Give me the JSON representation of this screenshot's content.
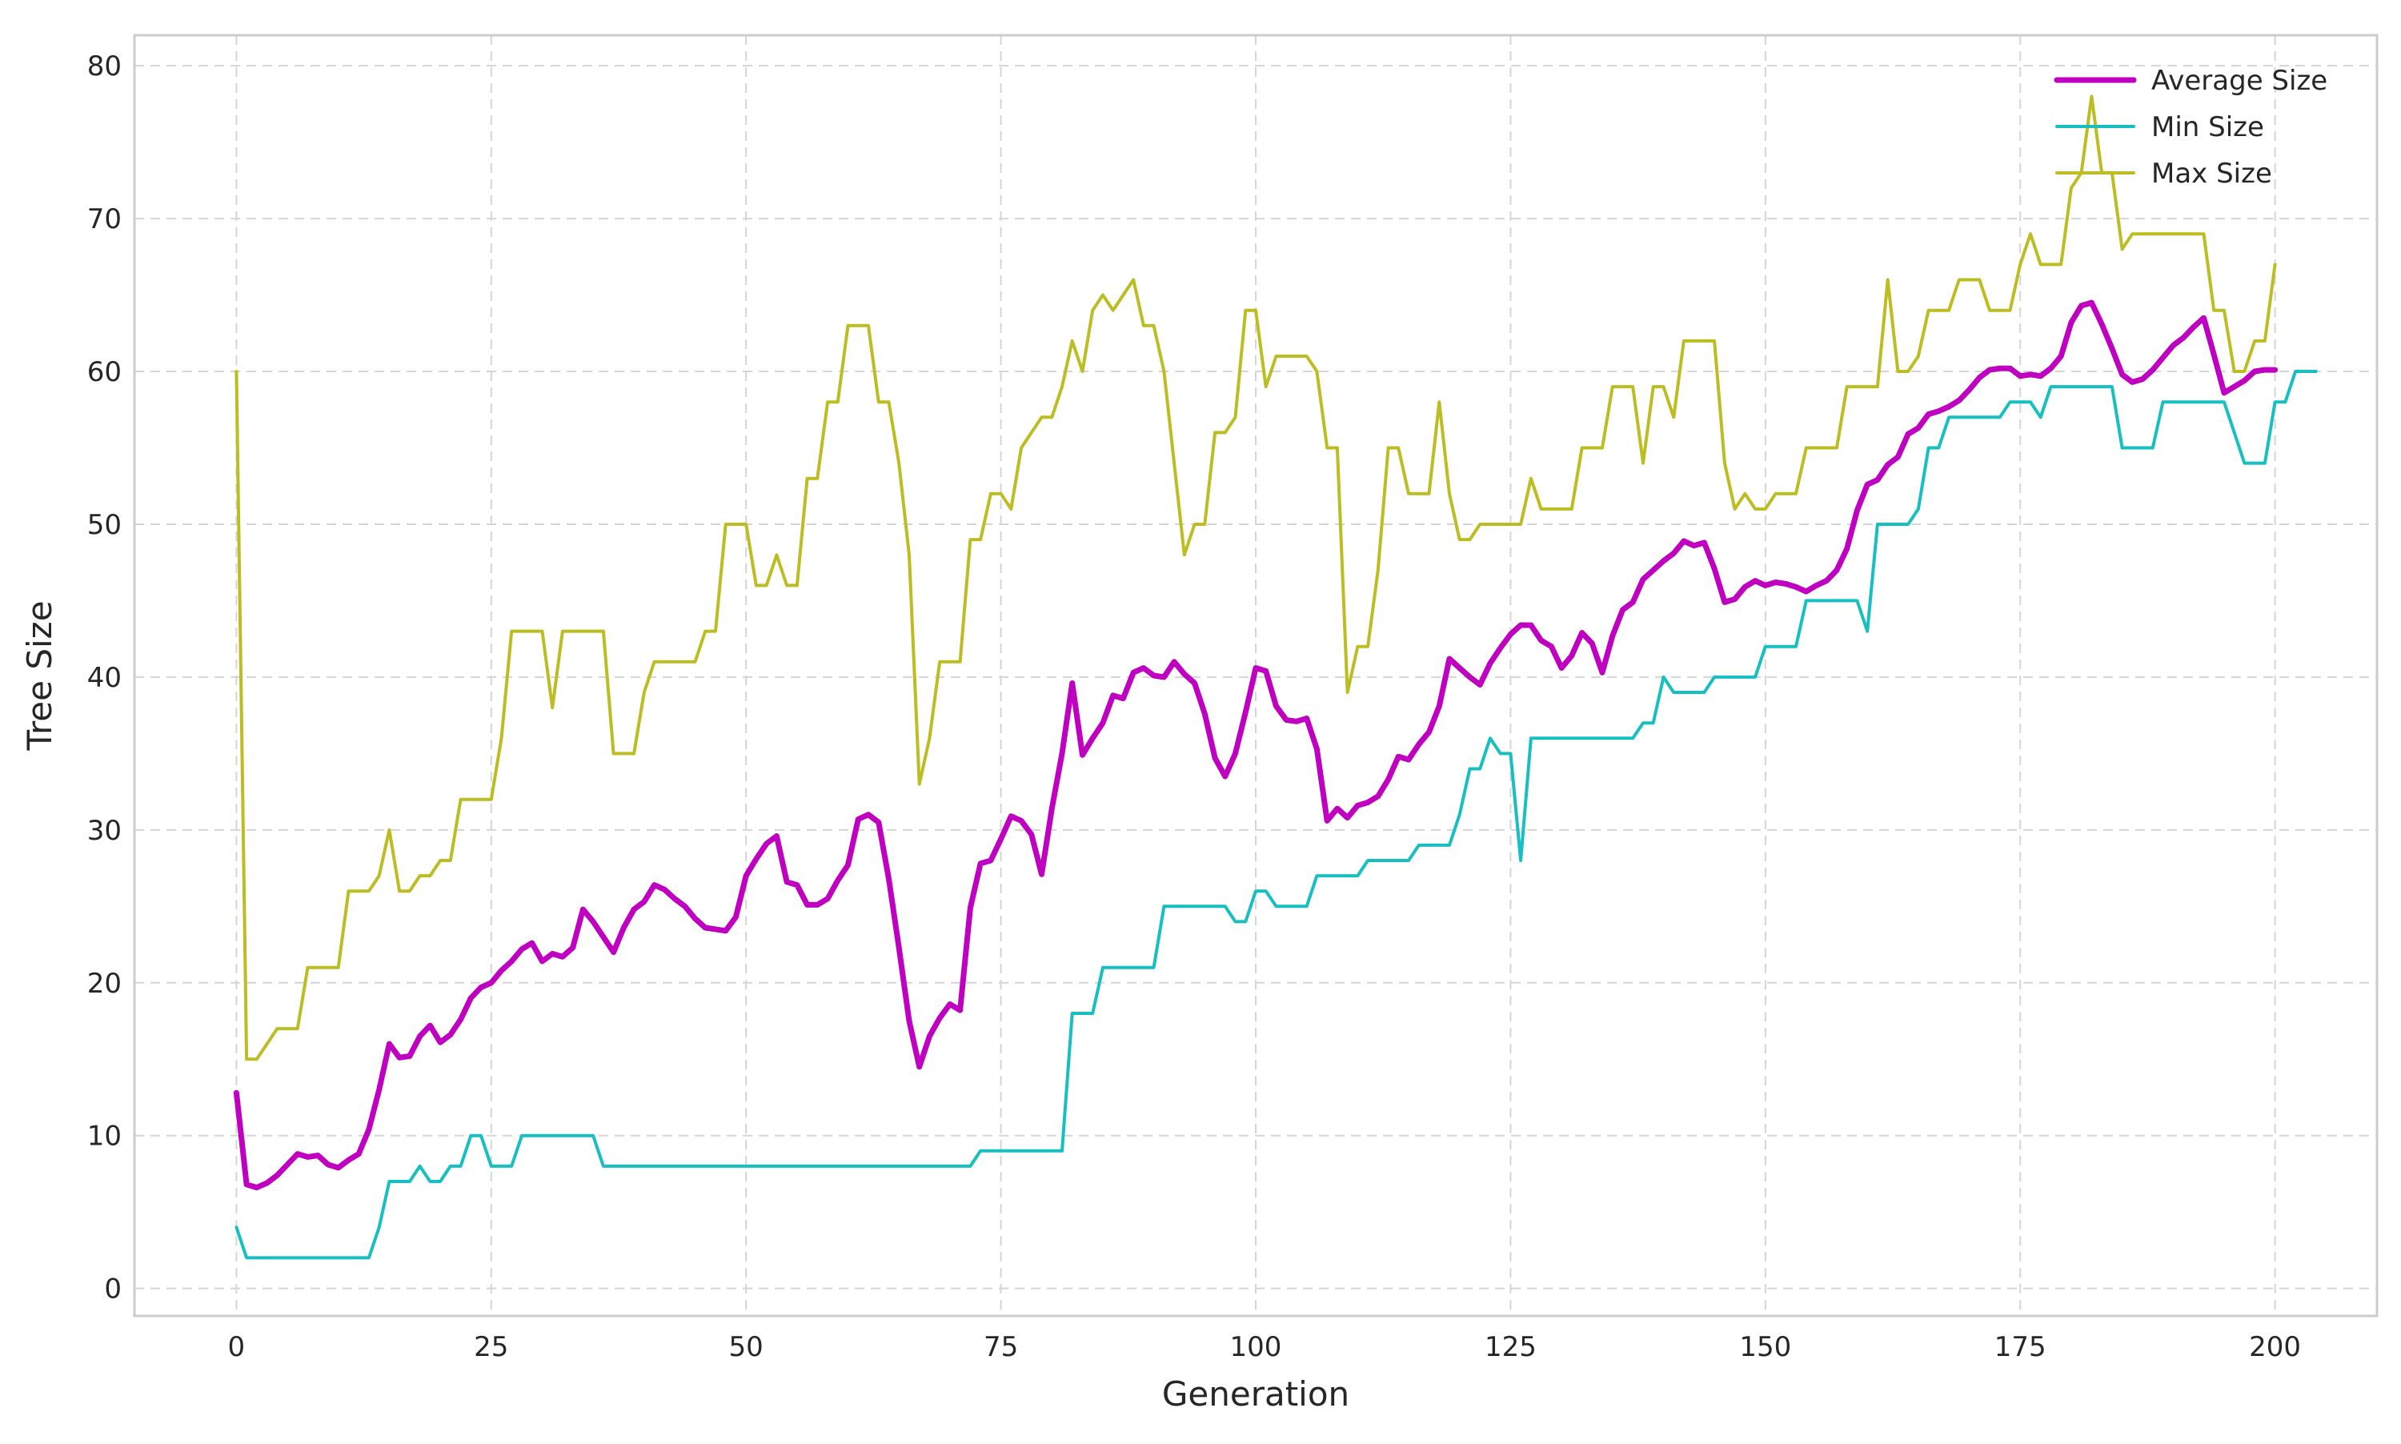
{
  "chart_data": {
    "type": "line",
    "title": "",
    "xlabel": "Generation",
    "ylabel": "Tree Size",
    "xlim": [
      -10,
      210
    ],
    "ylim": [
      -1.8,
      82
    ],
    "xticks": [
      0,
      25,
      50,
      75,
      100,
      125,
      150,
      175,
      200
    ],
    "yticks": [
      0,
      10,
      20,
      30,
      40,
      50,
      60,
      70,
      80
    ],
    "grid": true,
    "legend_position": "top-right",
    "series": [
      {
        "name": "Average Size",
        "color": "#c000c0",
        "width": 7,
        "values": [
          12.8,
          6.8,
          6.6,
          6.9,
          7.4,
          8.1,
          8.8,
          8.6,
          8.7,
          8.1,
          7.9,
          8.4,
          8.8,
          10.4,
          13.0,
          16.0,
          15.1,
          15.2,
          16.5,
          17.2,
          16.1,
          16.6,
          17.6,
          19.0,
          19.7,
          20.0,
          20.8,
          21.4,
          22.2,
          22.6,
          21.4,
          21.9,
          21.7,
          22.3,
          24.8,
          24.0,
          23.0,
          22.0,
          23.6,
          24.8,
          25.3,
          26.4,
          26.1,
          25.5,
          25.0,
          24.2,
          23.6,
          23.5,
          23.4,
          24.3,
          27.0,
          28.1,
          29.1,
          29.6,
          26.6,
          26.4,
          25.1,
          25.1,
          25.5,
          26.7,
          27.7,
          30.7,
          31.0,
          30.5,
          26.8,
          22.3,
          17.5,
          14.5,
          16.5,
          17.7,
          18.6,
          18.2,
          24.9,
          27.8,
          28.0,
          29.4,
          30.9,
          30.6,
          29.7,
          27.1,
          31.4,
          35.0,
          39.6,
          34.9,
          36.0,
          37.0,
          38.8,
          38.6,
          40.3,
          40.6,
          40.1,
          40.0,
          41.0,
          40.2,
          39.6,
          37.6,
          34.7,
          33.5,
          35.0,
          37.7,
          40.6,
          40.4,
          38.1,
          37.2,
          37.1,
          37.3,
          35.3,
          30.6,
          31.4,
          30.8,
          31.6,
          31.8,
          32.2,
          33.3,
          34.8,
          34.6,
          35.6,
          36.4,
          38.1,
          41.2,
          40.6,
          40.0,
          39.5,
          40.9,
          41.9,
          42.8,
          43.4,
          43.4,
          42.4,
          42.0,
          40.6,
          41.4,
          42.9,
          42.2,
          40.3,
          42.7,
          44.4,
          44.9,
          46.4,
          47.0,
          47.6,
          48.1,
          48.9,
          48.6,
          48.8,
          47.1,
          44.9,
          45.1,
          45.9,
          46.3,
          46.0,
          46.2,
          46.1,
          45.9,
          45.6,
          46.0,
          46.3,
          47.0,
          48.4,
          50.9,
          52.6,
          52.9,
          53.9,
          54.4,
          55.9,
          56.3,
          57.2,
          57.4,
          57.7,
          58.1,
          58.8,
          59.6,
          60.1,
          60.2,
          60.2,
          59.7,
          59.8,
          59.7,
          60.2,
          61.0,
          63.2,
          64.3,
          64.5,
          63.1,
          61.5,
          59.8,
          59.3,
          59.5,
          60.1,
          60.9,
          61.7,
          62.2,
          62.9,
          63.5,
          61.1,
          58.6,
          59.0,
          59.4,
          60.0,
          60.1,
          60.1
        ]
      },
      {
        "name": "Min Size",
        "color": "#17bfc1",
        "width": 4,
        "values": [
          4,
          2,
          2,
          2,
          2,
          2,
          2,
          2,
          2,
          2,
          2,
          2,
          2,
          2,
          4,
          7,
          7,
          7,
          8,
          7,
          7,
          8,
          8,
          10,
          10,
          8,
          8,
          8,
          10,
          10,
          10,
          10,
          10,
          10,
          10,
          10,
          8,
          8,
          8,
          8,
          8,
          8,
          8,
          8,
          8,
          8,
          8,
          8,
          8,
          8,
          8,
          8,
          8,
          8,
          8,
          8,
          8,
          8,
          8,
          8,
          8,
          8,
          8,
          8,
          8,
          8,
          8,
          8,
          8,
          8,
          8,
          8,
          8,
          9,
          9,
          9,
          9,
          9,
          9,
          9,
          9,
          9,
          18,
          18,
          18,
          21,
          21,
          21,
          21,
          21,
          21,
          25,
          25,
          25,
          25,
          25,
          25,
          25,
          24,
          24,
          26,
          26,
          25,
          25,
          25,
          25,
          27,
          27,
          27,
          27,
          27,
          28,
          28,
          28,
          28,
          28,
          29,
          29,
          29,
          29,
          31,
          34,
          34,
          36,
          35,
          35,
          28,
          36,
          36,
          36,
          36,
          36,
          36,
          36,
          36,
          36,
          36,
          36,
          37,
          37,
          40,
          39,
          39,
          39,
          39,
          40,
          40,
          40,
          40,
          40,
          42,
          42,
          42,
          42,
          45,
          45,
          45,
          45,
          45,
          45,
          43,
          50,
          50,
          50,
          50,
          51,
          55,
          55,
          57,
          57,
          57,
          57,
          57,
          57,
          58,
          58,
          58,
          57,
          59,
          59,
          59,
          59,
          59,
          59,
          59,
          55,
          55,
          55,
          55,
          58,
          58,
          58,
          58,
          58,
          58,
          58,
          56,
          54,
          54,
          54,
          58,
          58,
          60,
          60,
          60
        ]
      },
      {
        "name": "Max Size",
        "color": "#bcbd22",
        "width": 4,
        "values": [
          60,
          15,
          15,
          16,
          17,
          17,
          17,
          21,
          21,
          21,
          21,
          26,
          26,
          26,
          27,
          30,
          26,
          26,
          27,
          27,
          28,
          28,
          32,
          32,
          32,
          32,
          36,
          43,
          43,
          43,
          43,
          38,
          43,
          43,
          43,
          43,
          43,
          35,
          35,
          35,
          39,
          41,
          41,
          41,
          41,
          41,
          43,
          43,
          50,
          50,
          50,
          46,
          46,
          48,
          46,
          46,
          53,
          53,
          58,
          58,
          63,
          63,
          63,
          58,
          58,
          54,
          48,
          33,
          36,
          41,
          41,
          41,
          49,
          49,
          52,
          52,
          51,
          55,
          56,
          57,
          57,
          59,
          62,
          60,
          64,
          65,
          64,
          65,
          66,
          63,
          63,
          60,
          54,
          48,
          50,
          50,
          56,
          56,
          57,
          64,
          64,
          59,
          61,
          61,
          61,
          61,
          60,
          55,
          55,
          39,
          42,
          42,
          47,
          55,
          55,
          52,
          52,
          52,
          58,
          52,
          49,
          49,
          50,
          50,
          50,
          50,
          50,
          53,
          51,
          51,
          51,
          51,
          55,
          55,
          55,
          59,
          59,
          59,
          54,
          59,
          59,
          57,
          62,
          62,
          62,
          62,
          54,
          51,
          52,
          51,
          51,
          52,
          52,
          52,
          55,
          55,
          55,
          55,
          59,
          59,
          59,
          59,
          66,
          60,
          60,
          61,
          64,
          64,
          64,
          66,
          66,
          66,
          64,
          64,
          64,
          67,
          69,
          67,
          67,
          67,
          72,
          73,
          78,
          73,
          73,
          68,
          69,
          69,
          69,
          69,
          69,
          69,
          69,
          69,
          64,
          64,
          60,
          60,
          62,
          62,
          67
        ]
      }
    ]
  }
}
